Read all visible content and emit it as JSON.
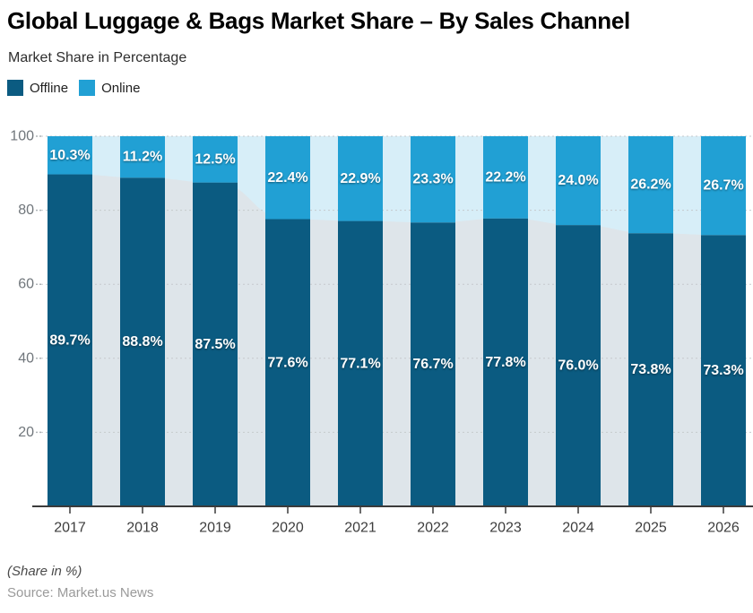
{
  "title": "Global Luggage & Bags Market Share – By Sales Channel",
  "subtitle": "Market Share in Percentage",
  "chart_data": {
    "type": "bar",
    "stacked": true,
    "percent_stacked": true,
    "title": "Global Luggage & Bags Market Share – By Sales Channel",
    "subtitle": "Market Share in Percentage",
    "categories": [
      "2017",
      "2018",
      "2019",
      "2020",
      "2021",
      "2022",
      "2023",
      "2024",
      "2025",
      "2026"
    ],
    "series": [
      {
        "name": "Offline",
        "color": "#0b5b81",
        "values": [
          89.7,
          88.8,
          87.5,
          77.6,
          77.1,
          76.7,
          77.8,
          76.0,
          73.8,
          73.3
        ]
      },
      {
        "name": "Online",
        "color": "#21a0d4",
        "values": [
          10.3,
          11.2,
          12.5,
          22.4,
          22.9,
          23.3,
          22.2,
          24.0,
          26.2,
          26.7
        ]
      }
    ],
    "value_suffix": "%",
    "value_decimals": 1,
    "ylim": [
      0,
      100
    ],
    "yticks": [
      20,
      40,
      60,
      80,
      100
    ],
    "grid": "dashed-horizontal",
    "legend_position": "top-left",
    "background_bands": {
      "total_band_color": "#d7eef8",
      "offline_trend_color": "#dee5ea"
    },
    "grid_color": "#c5cacd",
    "axis_color": "#3b3b3b"
  },
  "footer": {
    "note": "(Share in %)",
    "source": "Source: Market.us News"
  }
}
